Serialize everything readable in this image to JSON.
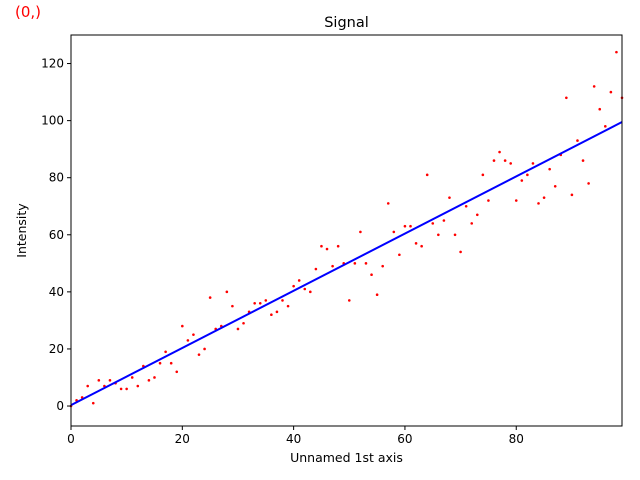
{
  "corner_label": {
    "text": "(0,)",
    "color": "#ff0000"
  },
  "chart_data": {
    "type": "scatter",
    "title": "Signal",
    "xlabel": "Unnamed 1st axis",
    "ylabel": "Intensity",
    "xlim": [
      0,
      99
    ],
    "ylim": [
      -7,
      130
    ],
    "xticks": [
      0,
      20,
      40,
      60,
      80
    ],
    "yticks": [
      0,
      20,
      40,
      60,
      80,
      100,
      120
    ],
    "grid": false,
    "colors": {
      "points": "#ff0000",
      "fit_line": "#0000ff",
      "axes": "#000000"
    },
    "series": [
      {
        "kind": "scatter",
        "x": [
          0,
          1,
          2,
          3,
          4,
          5,
          6,
          7,
          8,
          9,
          10,
          11,
          12,
          13,
          14,
          15,
          16,
          17,
          18,
          19,
          20,
          21,
          22,
          23,
          24,
          25,
          26,
          27,
          28,
          29,
          30,
          31,
          32,
          33,
          34,
          35,
          36,
          37,
          38,
          39,
          40,
          41,
          42,
          43,
          44,
          45,
          46,
          47,
          48,
          49,
          50,
          51,
          52,
          53,
          54,
          55,
          56,
          57,
          58,
          59,
          60,
          61,
          62,
          63,
          64,
          65,
          66,
          67,
          68,
          69,
          70,
          71,
          72,
          73,
          74,
          75,
          76,
          77,
          78,
          79,
          80,
          81,
          82,
          83,
          84,
          85,
          86,
          87,
          88,
          89,
          90,
          91,
          92,
          93,
          94,
          95,
          96,
          97,
          98,
          99
        ],
        "values": [
          0,
          2,
          3,
          7,
          1,
          9,
          7,
          9,
          8,
          6,
          6,
          10,
          7,
          14,
          9,
          10,
          15,
          19,
          15,
          12,
          28,
          23,
          25,
          18,
          20,
          38,
          27,
          28,
          40,
          35,
          27,
          29,
          33,
          36,
          36,
          37,
          32,
          33,
          37,
          35,
          42,
          44,
          41,
          40,
          48,
          56,
          55,
          49,
          56,
          50,
          37,
          50,
          61,
          50,
          46,
          39,
          49,
          71,
          61,
          53,
          63,
          63,
          57,
          56,
          81,
          64,
          60,
          65,
          73,
          60,
          54,
          70,
          64,
          67,
          81,
          72,
          86,
          89,
          86,
          85,
          72,
          79,
          81,
          85,
          71,
          73,
          83,
          77,
          88,
          108,
          74,
          93,
          86,
          78,
          112,
          104,
          98,
          110,
          124,
          108
        ]
      },
      {
        "kind": "line",
        "x": [
          0,
          99
        ],
        "values": [
          0.3,
          99.5
        ]
      }
    ]
  }
}
